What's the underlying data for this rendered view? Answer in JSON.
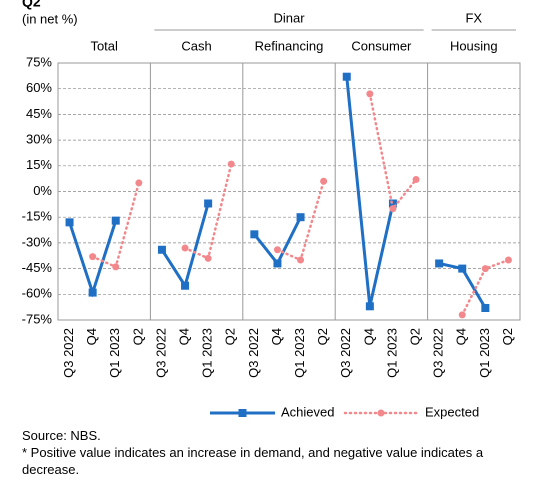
{
  "chart_data": {
    "type": "line",
    "title": "Q2",
    "subtitle": "(in net %)",
    "groups": [
      {
        "label": "Dinar"
      },
      {
        "label": "FX"
      }
    ],
    "categories": [
      "Q3 2022",
      "Q4",
      "Q1 2023",
      "Q2"
    ],
    "series": [
      {
        "name": "Achieved",
        "color": "#1f6fc5"
      },
      {
        "name": "Expected",
        "color": "#f2888c"
      }
    ],
    "panels": [
      {
        "title": "Total",
        "series": [
          {
            "values": [
              -18,
              -59,
              -17,
              null
            ]
          },
          {
            "values": [
              null,
              -38,
              -44,
              5
            ]
          }
        ]
      },
      {
        "title": "Cash",
        "series": [
          {
            "values": [
              -34,
              -55,
              -7,
              null
            ]
          },
          {
            "values": [
              null,
              -33,
              -39,
              16
            ]
          }
        ]
      },
      {
        "title": "Refinancing",
        "series": [
          {
            "values": [
              -25,
              -42,
              -15,
              null
            ]
          },
          {
            "values": [
              null,
              -34,
              -40,
              6
            ]
          }
        ]
      },
      {
        "title": "Consumer",
        "series": [
          {
            "values": [
              67,
              -67,
              -7,
              null
            ]
          },
          {
            "values": [
              null,
              57,
              -10,
              7
            ]
          }
        ]
      },
      {
        "title": "Housing",
        "series": [
          {
            "values": [
              -42,
              -45,
              -68,
              null
            ]
          },
          {
            "values": [
              null,
              -72,
              -45,
              -40
            ]
          }
        ]
      }
    ],
    "ylim": [
      -75,
      75
    ],
    "yticks": [
      {
        "value": 75,
        "label": "75%"
      },
      {
        "value": 60,
        "label": "60%"
      },
      {
        "value": 45,
        "label": "45%"
      },
      {
        "value": 30,
        "label": "30%"
      },
      {
        "value": 15,
        "label": "15%"
      },
      {
        "value": 0,
        "label": "0%"
      },
      {
        "value": -15,
        "label": "-15%"
      },
      {
        "value": -30,
        "label": "-30%"
      },
      {
        "value": -45,
        "label": "-45%"
      },
      {
        "value": -60,
        "label": "-60%"
      },
      {
        "value": -75,
        "label": "-75%"
      }
    ],
    "grid": true,
    "legend": "bottom",
    "source": "Source:  NBS.",
    "note": "* Positive value indicates an increase in demand, and negative value indicates a decrease."
  }
}
